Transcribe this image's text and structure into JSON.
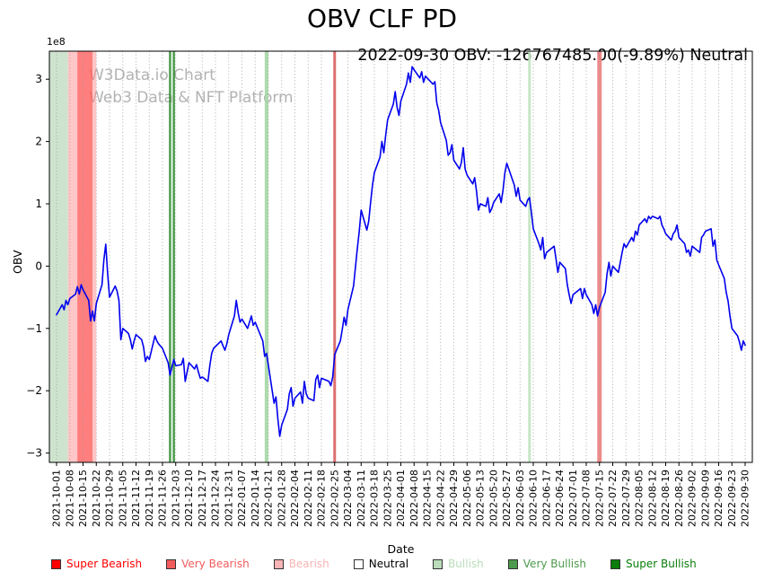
{
  "chart_data": {
    "type": "line",
    "title": "OBV CLF PD",
    "annotation": "2022-09-30 OBV: -126767485.00(-9.89%) Neutral",
    "watermark": [
      "W3Data.io Chart",
      "Web3 Data & NFT Platform"
    ],
    "xlabel": "Date",
    "ylabel": "OBV",
    "y_offset_label": "1e8",
    "y_ticks": [
      -3,
      -2,
      -1,
      0,
      1,
      2,
      3
    ],
    "ylim": [
      -3.15,
      3.45
    ],
    "x_start": "2021-10-01",
    "x_end": "2022-09-30",
    "x_ticks": [
      "2021-10-01",
      "2021-10-08",
      "2021-10-15",
      "2021-10-22",
      "2021-10-29",
      "2021-11-05",
      "2021-11-12",
      "2021-11-19",
      "2021-11-26",
      "2021-12-03",
      "2021-12-10",
      "2021-12-17",
      "2021-12-24",
      "2021-12-31",
      "2022-01-07",
      "2022-01-14",
      "2022-01-21",
      "2022-01-28",
      "2022-02-04",
      "2022-02-11",
      "2022-02-18",
      "2022-02-25",
      "2022-03-04",
      "2022-03-11",
      "2022-03-18",
      "2022-03-25",
      "2022-04-01",
      "2022-04-08",
      "2022-04-15",
      "2022-04-22",
      "2022-04-29",
      "2022-05-06",
      "2022-05-13",
      "2022-05-20",
      "2022-05-27",
      "2022-06-03",
      "2022-06-10",
      "2022-06-17",
      "2022-06-24",
      "2022-07-01",
      "2022-07-08",
      "2022-07-15",
      "2022-07-22",
      "2022-07-29",
      "2022-08-05",
      "2022-08-12",
      "2022-08-19",
      "2022-08-26",
      "2022-09-02",
      "2022-09-09",
      "2022-09-16",
      "2022-09-23",
      "2022-09-30"
    ],
    "grid": {
      "vertical": true,
      "horizontal": false,
      "style": "dotted",
      "color": "#9a9a9a"
    },
    "line_color": "#0000ee",
    "value_scale": 100000000,
    "bands": [
      {
        "signal": "bullish",
        "from": "2021-10-01",
        "to": "2021-10-07",
        "color": "#9dc89d",
        "opacity": 0.5
      },
      {
        "signal": "bearish",
        "from": "2021-10-07",
        "to": "2021-10-22",
        "color": "#ff9090",
        "opacity": 0.5
      },
      {
        "signal": "very-bearish",
        "from": "2021-10-12",
        "to": "2021-10-20",
        "color": "#ff4d4d",
        "opacity": 0.6
      }
    ],
    "vlines": [
      {
        "signal": "very-bullish",
        "date": "2021-11-30",
        "color": "#2e8b2e",
        "opacity": 0.85,
        "width": 2.5
      },
      {
        "signal": "very-bullish",
        "date": "2021-12-02",
        "color": "#2e8b2e",
        "opacity": 0.85,
        "width": 2.5
      },
      {
        "signal": "bullish",
        "date": "2022-01-20",
        "color": "#a5d6a5",
        "opacity": 0.9,
        "width": 4
      },
      {
        "signal": "very-bearish",
        "date": "2022-02-25",
        "color": "#e05c5c",
        "opacity": 0.9,
        "width": 3
      },
      {
        "signal": "bullish",
        "date": "2022-06-08",
        "color": "#bfe4bf",
        "opacity": 0.9,
        "width": 3
      },
      {
        "signal": "very-bearish",
        "date": "2022-07-15",
        "color": "#ef8585",
        "opacity": 0.95,
        "width": 5
      }
    ],
    "series": {
      "name": "OBV",
      "points": [
        [
          "2021-10-01",
          -0.78
        ],
        [
          "2021-10-04",
          -0.62
        ],
        [
          "2021-10-05",
          -0.7
        ],
        [
          "2021-10-06",
          -0.55
        ],
        [
          "2021-10-07",
          -0.62
        ],
        [
          "2021-10-08",
          -0.52
        ],
        [
          "2021-10-11",
          -0.45
        ],
        [
          "2021-10-12",
          -0.33
        ],
        [
          "2021-10-13",
          -0.45
        ],
        [
          "2021-10-14",
          -0.3
        ],
        [
          "2021-10-15",
          -0.38
        ],
        [
          "2021-10-18",
          -0.55
        ],
        [
          "2021-10-19",
          -0.88
        ],
        [
          "2021-10-20",
          -0.72
        ],
        [
          "2021-10-21",
          -0.88
        ],
        [
          "2021-10-22",
          -0.6
        ],
        [
          "2021-10-25",
          -0.3
        ],
        [
          "2021-10-26",
          0.1
        ],
        [
          "2021-10-27",
          0.35
        ],
        [
          "2021-10-28",
          -0.12
        ],
        [
          "2021-10-29",
          -0.5
        ],
        [
          "2021-11-01",
          -0.32
        ],
        [
          "2021-11-02",
          -0.4
        ],
        [
          "2021-11-03",
          -0.55
        ],
        [
          "2021-11-04",
          -1.18
        ],
        [
          "2021-11-05",
          -1.0
        ],
        [
          "2021-11-08",
          -1.08
        ],
        [
          "2021-11-09",
          -1.18
        ],
        [
          "2021-11-10",
          -1.33
        ],
        [
          "2021-11-11",
          -1.2
        ],
        [
          "2021-11-12",
          -1.1
        ],
        [
          "2021-11-15",
          -1.18
        ],
        [
          "2021-11-16",
          -1.3
        ],
        [
          "2021-11-17",
          -1.53
        ],
        [
          "2021-11-18",
          -1.45
        ],
        [
          "2021-11-19",
          -1.5
        ],
        [
          "2021-11-22",
          -1.12
        ],
        [
          "2021-11-23",
          -1.2
        ],
        [
          "2021-11-24",
          -1.25
        ],
        [
          "2021-11-26",
          -1.32
        ],
        [
          "2021-11-29",
          -1.55
        ],
        [
          "2021-11-30",
          -1.75
        ],
        [
          "2021-12-01",
          -1.62
        ],
        [
          "2021-12-02",
          -1.5
        ],
        [
          "2021-12-03",
          -1.6
        ],
        [
          "2021-12-06",
          -1.58
        ],
        [
          "2021-12-07",
          -1.48
        ],
        [
          "2021-12-08",
          -1.85
        ],
        [
          "2021-12-09",
          -1.7
        ],
        [
          "2021-12-10",
          -1.55
        ],
        [
          "2021-12-13",
          -1.65
        ],
        [
          "2021-12-14",
          -1.58
        ],
        [
          "2021-12-15",
          -1.7
        ],
        [
          "2021-12-16",
          -1.8
        ],
        [
          "2021-12-17",
          -1.78
        ],
        [
          "2021-12-20",
          -1.85
        ],
        [
          "2021-12-21",
          -1.6
        ],
        [
          "2021-12-22",
          -1.4
        ],
        [
          "2021-12-23",
          -1.32
        ],
        [
          "2021-12-27",
          -1.2
        ],
        [
          "2021-12-28",
          -1.28
        ],
        [
          "2021-12-29",
          -1.35
        ],
        [
          "2021-12-30",
          -1.25
        ],
        [
          "2021-12-31",
          -1.1
        ],
        [
          "2022-01-03",
          -0.8
        ],
        [
          "2022-01-04",
          -0.55
        ],
        [
          "2022-01-05",
          -0.75
        ],
        [
          "2022-01-06",
          -0.9
        ],
        [
          "2022-01-07",
          -0.85
        ],
        [
          "2022-01-10",
          -1.0
        ],
        [
          "2022-01-11",
          -0.9
        ],
        [
          "2022-01-12",
          -0.8
        ],
        [
          "2022-01-13",
          -0.95
        ],
        [
          "2022-01-14",
          -0.9
        ],
        [
          "2022-01-18",
          -1.2
        ],
        [
          "2022-01-19",
          -1.45
        ],
        [
          "2022-01-20",
          -1.4
        ],
        [
          "2022-01-21",
          -1.6
        ],
        [
          "2022-01-24",
          -2.2
        ],
        [
          "2022-01-25",
          -2.1
        ],
        [
          "2022-01-26",
          -2.45
        ],
        [
          "2022-01-27",
          -2.73
        ],
        [
          "2022-01-28",
          -2.55
        ],
        [
          "2022-01-31",
          -2.3
        ],
        [
          "2022-02-01",
          -2.05
        ],
        [
          "2022-02-02",
          -1.95
        ],
        [
          "2022-02-03",
          -2.25
        ],
        [
          "2022-02-04",
          -2.12
        ],
        [
          "2022-02-07",
          -2.02
        ],
        [
          "2022-02-08",
          -2.2
        ],
        [
          "2022-02-09",
          -1.85
        ],
        [
          "2022-02-10",
          -2.05
        ],
        [
          "2022-02-11",
          -2.12
        ],
        [
          "2022-02-14",
          -2.16
        ],
        [
          "2022-02-15",
          -1.82
        ],
        [
          "2022-02-16",
          -1.75
        ],
        [
          "2022-02-17",
          -1.95
        ],
        [
          "2022-02-18",
          -1.8
        ],
        [
          "2022-02-22",
          -1.85
        ],
        [
          "2022-02-23",
          -1.92
        ],
        [
          "2022-02-24",
          -1.78
        ],
        [
          "2022-02-25",
          -1.42
        ],
        [
          "2022-02-28",
          -1.2
        ],
        [
          "2022-03-01",
          -1.02
        ],
        [
          "2022-03-02",
          -0.82
        ],
        [
          "2022-03-03",
          -0.95
        ],
        [
          "2022-03-04",
          -0.7
        ],
        [
          "2022-03-07",
          -0.32
        ],
        [
          "2022-03-08",
          -0.02
        ],
        [
          "2022-03-09",
          0.28
        ],
        [
          "2022-03-10",
          0.55
        ],
        [
          "2022-03-11",
          0.9
        ],
        [
          "2022-03-14",
          0.58
        ],
        [
          "2022-03-15",
          0.72
        ],
        [
          "2022-03-16",
          1.02
        ],
        [
          "2022-03-17",
          1.3
        ],
        [
          "2022-03-18",
          1.5
        ],
        [
          "2022-03-21",
          1.75
        ],
        [
          "2022-03-22",
          2.0
        ],
        [
          "2022-03-23",
          1.82
        ],
        [
          "2022-03-24",
          2.1
        ],
        [
          "2022-03-25",
          2.35
        ],
        [
          "2022-03-28",
          2.6
        ],
        [
          "2022-03-29",
          2.8
        ],
        [
          "2022-03-30",
          2.55
        ],
        [
          "2022-03-31",
          2.42
        ],
        [
          "2022-04-01",
          2.65
        ],
        [
          "2022-04-04",
          2.92
        ],
        [
          "2022-04-05",
          3.1
        ],
        [
          "2022-04-06",
          2.95
        ],
        [
          "2022-04-07",
          3.2
        ],
        [
          "2022-04-08",
          3.15
        ],
        [
          "2022-04-11",
          3.02
        ],
        [
          "2022-04-12",
          3.12
        ],
        [
          "2022-04-13",
          2.95
        ],
        [
          "2022-04-14",
          3.05
        ],
        [
          "2022-04-18",
          2.92
        ],
        [
          "2022-04-19",
          2.96
        ],
        [
          "2022-04-20",
          2.62
        ],
        [
          "2022-04-21",
          2.5
        ],
        [
          "2022-04-22",
          2.3
        ],
        [
          "2022-04-25",
          2.02
        ],
        [
          "2022-04-26",
          1.78
        ],
        [
          "2022-04-27",
          1.82
        ],
        [
          "2022-04-28",
          1.95
        ],
        [
          "2022-04-29",
          1.7
        ],
        [
          "2022-05-02",
          1.56
        ],
        [
          "2022-05-03",
          1.66
        ],
        [
          "2022-05-04",
          1.9
        ],
        [
          "2022-05-05",
          1.56
        ],
        [
          "2022-05-06",
          1.46
        ],
        [
          "2022-05-09",
          1.32
        ],
        [
          "2022-05-10",
          1.42
        ],
        [
          "2022-05-11",
          1.2
        ],
        [
          "2022-05-12",
          0.9
        ],
        [
          "2022-05-13",
          1.0
        ],
        [
          "2022-05-16",
          0.96
        ],
        [
          "2022-05-17",
          1.1
        ],
        [
          "2022-05-18",
          0.86
        ],
        [
          "2022-05-19",
          0.92
        ],
        [
          "2022-05-20",
          1.02
        ],
        [
          "2022-05-23",
          1.16
        ],
        [
          "2022-05-24",
          1.02
        ],
        [
          "2022-05-25",
          1.22
        ],
        [
          "2022-05-26",
          1.5
        ],
        [
          "2022-05-27",
          1.65
        ],
        [
          "2022-05-31",
          1.3
        ],
        [
          "2022-06-01",
          1.12
        ],
        [
          "2022-06-02",
          1.26
        ],
        [
          "2022-06-03",
          1.06
        ],
        [
          "2022-06-06",
          0.96
        ],
        [
          "2022-06-07",
          1.06
        ],
        [
          "2022-06-08",
          1.1
        ],
        [
          "2022-06-09",
          0.86
        ],
        [
          "2022-06-10",
          0.6
        ],
        [
          "2022-06-13",
          0.36
        ],
        [
          "2022-06-14",
          0.26
        ],
        [
          "2022-06-15",
          0.46
        ],
        [
          "2022-06-16",
          0.12
        ],
        [
          "2022-06-17",
          0.22
        ],
        [
          "2022-06-21",
          0.32
        ],
        [
          "2022-06-22",
          0.12
        ],
        [
          "2022-06-23",
          -0.1
        ],
        [
          "2022-06-24",
          0.06
        ],
        [
          "2022-06-27",
          -0.04
        ],
        [
          "2022-06-28",
          -0.3
        ],
        [
          "2022-06-29",
          -0.46
        ],
        [
          "2022-06-30",
          -0.6
        ],
        [
          "2022-07-01",
          -0.46
        ],
        [
          "2022-07-05",
          -0.36
        ],
        [
          "2022-07-06",
          -0.52
        ],
        [
          "2022-07-07",
          -0.36
        ],
        [
          "2022-07-08",
          -0.46
        ],
        [
          "2022-07-11",
          -0.62
        ],
        [
          "2022-07-12",
          -0.76
        ],
        [
          "2022-07-13",
          -0.62
        ],
        [
          "2022-07-14",
          -0.8
        ],
        [
          "2022-07-15",
          -0.66
        ],
        [
          "2022-07-18",
          -0.42
        ],
        [
          "2022-07-19",
          -0.12
        ],
        [
          "2022-07-20",
          0.06
        ],
        [
          "2022-07-21",
          -0.16
        ],
        [
          "2022-07-22",
          0.0
        ],
        [
          "2022-07-25",
          -0.1
        ],
        [
          "2022-07-26",
          0.06
        ],
        [
          "2022-07-27",
          0.22
        ],
        [
          "2022-07-28",
          0.36
        ],
        [
          "2022-07-29",
          0.3
        ],
        [
          "2022-08-01",
          0.46
        ],
        [
          "2022-08-02",
          0.4
        ],
        [
          "2022-08-03",
          0.56
        ],
        [
          "2022-08-04",
          0.5
        ],
        [
          "2022-08-05",
          0.66
        ],
        [
          "2022-08-08",
          0.76
        ],
        [
          "2022-08-09",
          0.7
        ],
        [
          "2022-08-10",
          0.8
        ],
        [
          "2022-08-11",
          0.76
        ],
        [
          "2022-08-12",
          0.8
        ],
        [
          "2022-08-15",
          0.76
        ],
        [
          "2022-08-16",
          0.8
        ],
        [
          "2022-08-17",
          0.66
        ],
        [
          "2022-08-18",
          0.6
        ],
        [
          "2022-08-19",
          0.52
        ],
        [
          "2022-08-22",
          0.42
        ],
        [
          "2022-08-23",
          0.52
        ],
        [
          "2022-08-24",
          0.56
        ],
        [
          "2022-08-25",
          0.66
        ],
        [
          "2022-08-26",
          0.46
        ],
        [
          "2022-08-29",
          0.36
        ],
        [
          "2022-08-30",
          0.22
        ],
        [
          "2022-08-31",
          0.26
        ],
        [
          "2022-09-01",
          0.16
        ],
        [
          "2022-09-02",
          0.32
        ],
        [
          "2022-09-06",
          0.22
        ],
        [
          "2022-09-07",
          0.46
        ],
        [
          "2022-09-08",
          0.5
        ],
        [
          "2022-09-09",
          0.56
        ],
        [
          "2022-09-12",
          0.6
        ],
        [
          "2022-09-13",
          0.32
        ],
        [
          "2022-09-14",
          0.42
        ],
        [
          "2022-09-15",
          0.1
        ],
        [
          "2022-09-16",
          0.02
        ],
        [
          "2022-09-19",
          -0.2
        ],
        [
          "2022-09-20",
          -0.42
        ],
        [
          "2022-09-21",
          -0.56
        ],
        [
          "2022-09-22",
          -0.8
        ],
        [
          "2022-09-23",
          -1.0
        ],
        [
          "2022-09-26",
          -1.12
        ],
        [
          "2022-09-27",
          -1.22
        ],
        [
          "2022-09-28",
          -1.35
        ],
        [
          "2022-09-29",
          -1.2
        ],
        [
          "2022-09-30",
          -1.27
        ]
      ]
    }
  },
  "legend": {
    "items": [
      {
        "label": "Super Bearish",
        "color": "#ff0000",
        "text_color": "#ff0000"
      },
      {
        "label": "Very Bearish",
        "color": "#f25c5c",
        "text_color": "#f25c5c"
      },
      {
        "label": "Bearish",
        "color": "#f8b4b4",
        "text_color": "#f8b4b4"
      },
      {
        "label": "Neutral",
        "color": "#ffffff",
        "text_color": "#000000"
      },
      {
        "label": "Bullish",
        "color": "#b9dcb9",
        "text_color": "#b9dcb9"
      },
      {
        "label": "Very Bullish",
        "color": "#4c9a4c",
        "text_color": "#4c9a4c"
      },
      {
        "label": "Super Bullish",
        "color": "#0a7d0a",
        "text_color": "#0a7d0a"
      }
    ]
  }
}
